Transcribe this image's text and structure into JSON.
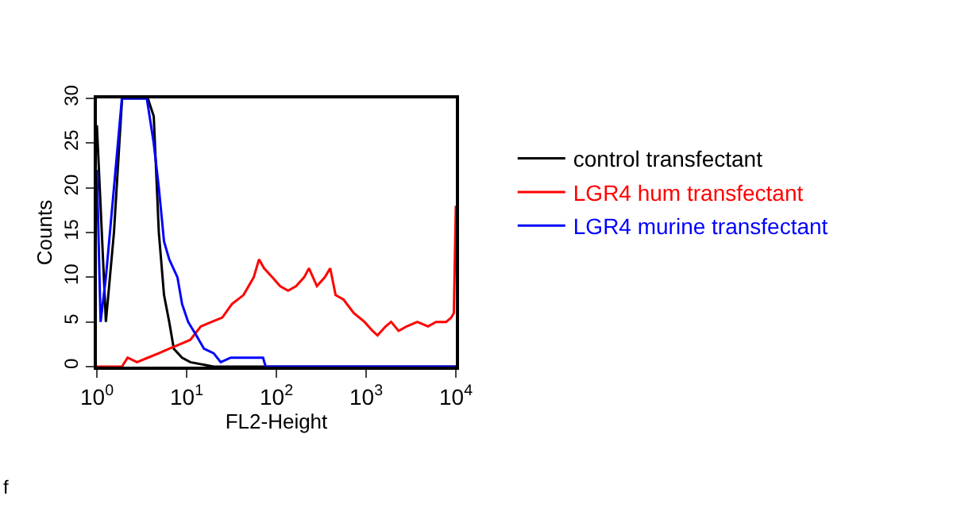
{
  "chart_data": {
    "type": "line",
    "xlabel": "FL2-Height",
    "ylabel": "Counts",
    "log": "x",
    "legend": "right",
    "marker": "none",
    "line_style": "solid",
    "xlim": [
      1,
      10000
    ],
    "ylim": [
      0,
      30
    ],
    "xticks": [
      {
        "value": 1,
        "label": "10$^{0}$"
      },
      {
        "value": 10,
        "label": "10$^{1}$"
      },
      {
        "value": 100,
        "label": "10$^{2}$"
      },
      {
        "value": 1000,
        "label": "10$^{3}$"
      },
      {
        "value": 10000,
        "label": "10$^{4}$"
      }
    ],
    "yticks": [
      0,
      5,
      10,
      15,
      20,
      25,
      30
    ],
    "annotations": [
      "f"
    ],
    "series": [
      {
        "name": "control transfectant",
        "color": "#000000",
        "x": [
          1,
          1.26,
          1.55,
          1.78,
          1.91,
          3.7,
          4.3,
          4.9,
          5.6,
          6.4,
          7.2,
          8.9,
          11,
          20,
          10000
        ],
        "values": [
          27,
          5,
          15,
          25,
          30,
          30,
          28,
          15,
          8,
          5,
          2,
          1,
          0.5,
          0,
          0
        ]
      },
      {
        "name": "LGR4 hum transfectant",
        "color": "#ff0000",
        "x": [
          1,
          1.9,
          2.2,
          2.8,
          3.7,
          4.9,
          6.4,
          8.4,
          11,
          14.4,
          19,
          25,
          32,
          43,
          56,
          64,
          73,
          90,
          110,
          135,
          166,
          204,
          231,
          283,
          347,
          398,
          457,
          560,
          728,
          960,
          1180,
          1340,
          1650,
          1900,
          2300,
          2830,
          3720,
          4900,
          6000,
          7800,
          8900,
          9500,
          10000
        ],
        "values": [
          0,
          0,
          1,
          0.5,
          1,
          1.5,
          2,
          2.5,
          3,
          4.5,
          5,
          5.5,
          7,
          8,
          10,
          12,
          11,
          10,
          9,
          8.5,
          9,
          10,
          11,
          9,
          10,
          11,
          8,
          7.5,
          6,
          5,
          4,
          3.5,
          4.5,
          5,
          4,
          4.5,
          5,
          4.5,
          5,
          5,
          5.5,
          6,
          18
        ]
      },
      {
        "name": "LGR4 murine transfectant",
        "color": "#0000ff",
        "x": [
          1,
          1.1,
          1.26,
          1.55,
          1.9,
          3.6,
          4.3,
          4.9,
          5.6,
          6.4,
          7.9,
          8.9,
          10.4,
          12.8,
          15.6,
          20,
          24,
          31,
          47,
          71,
          76,
          10000
        ],
        "values": [
          22,
          5,
          10,
          20,
          30,
          30,
          25,
          20,
          14,
          12,
          10,
          7,
          5,
          3.5,
          2,
          1.5,
          0.5,
          1,
          1,
          1,
          0,
          0
        ]
      }
    ]
  }
}
